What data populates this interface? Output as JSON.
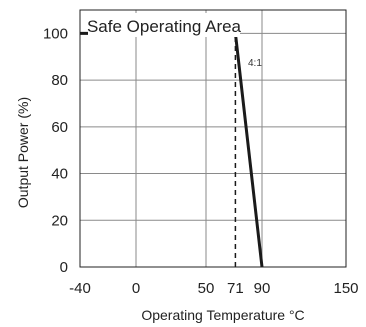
{
  "chart_data": {
    "type": "line",
    "title": "Safe Operating Area",
    "xlabel": "Operating Temperature °C",
    "ylabel": "Output Power (%)",
    "xlim": [
      -40,
      150
    ],
    "ylim": [
      0,
      110
    ],
    "x_ticks": [
      -40,
      0,
      50,
      71,
      90,
      150
    ],
    "x_tick_labels": [
      "-40",
      "0",
      "50",
      "71",
      "90",
      "150"
    ],
    "x_grid": [
      -40,
      0,
      50,
      90,
      150
    ],
    "y_ticks": [
      0,
      20,
      40,
      60,
      80,
      100
    ],
    "y_tick_labels": [
      "0",
      "20",
      "40",
      "60",
      "80",
      "100"
    ],
    "y_grid": [
      20,
      40,
      60,
      80,
      100
    ],
    "grid": true,
    "series": [
      {
        "name": "",
        "x": [
          -40,
          71,
          90
        ],
        "y": [
          100,
          100,
          0
        ],
        "color": "#1a1a1a"
      }
    ],
    "reference_lines": [
      {
        "x": 71,
        "y_from": 0,
        "y_to": 100,
        "style": "dashed"
      }
    ],
    "annotation": "4:1"
  }
}
